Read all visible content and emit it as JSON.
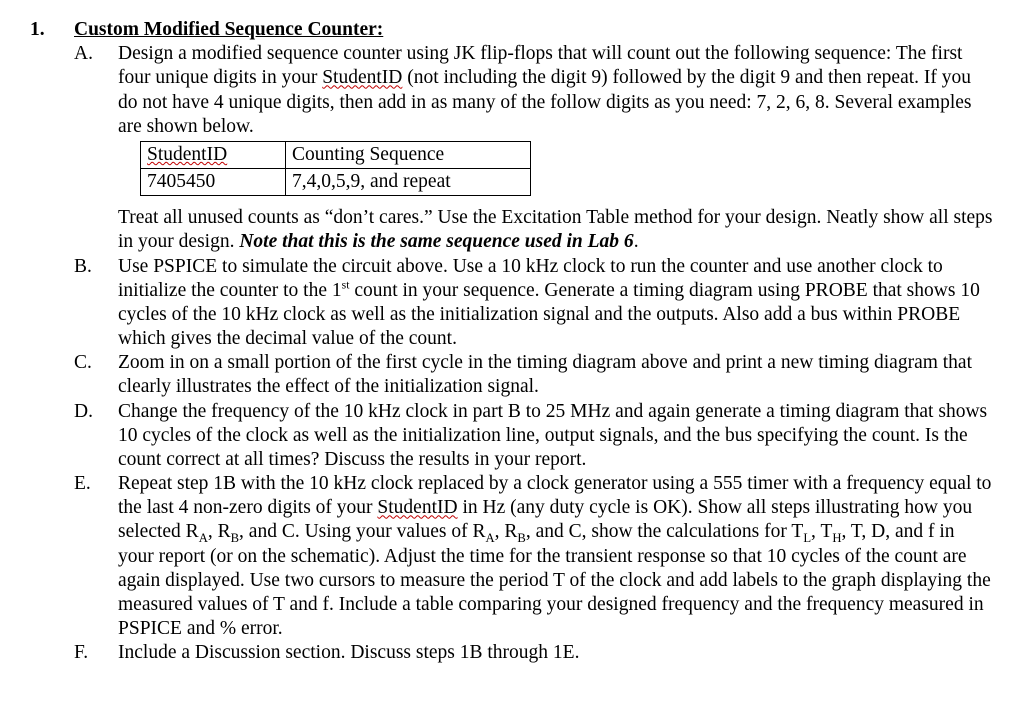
{
  "problem_number": "1.",
  "title": "Custom Modified Sequence Counter:",
  "items": {
    "A": {
      "letter": "A.",
      "p1_pre": "Design a modified sequence counter using JK flip-flops that will count out the following sequence: The first four unique digits in your ",
      "p1_wavy": "StudentID",
      "p1_post": " (not including the digit 9) followed by the digit 9 and then repeat.  If you do not have 4 unique digits, then add in as many of the follow digits as you need:  7, 2, 6, 8.  Several examples are shown below.",
      "table": {
        "h0_wavy": "StudentID",
        "h1": "Counting Sequence",
        "r0": "7405450",
        "r1": "7,4,0,5,9, and repeat"
      },
      "p2_a": "Treat all unused counts as “don’t cares.”  Use the Excitation Table method for your design.  Neatly show all steps in your design.  ",
      "p2_b": "Note that this is the same sequence used in Lab 6",
      "p2_c": "."
    },
    "B": {
      "letter": "B.",
      "t1": "Use PSPICE to simulate the circuit above.  Use a 10 kHz clock to run the counter and use another clock to initialize the counter to the 1",
      "sup": "st",
      "t2": " count in your sequence.  Generate a timing diagram using PROBE that shows 10 cycles of the 10 kHz clock as well as the initialization signal and the outputs.  Also add a bus within PROBE which gives the decimal value of the count."
    },
    "C": {
      "letter": "C.",
      "t": "Zoom in on a small portion of the first cycle in the timing diagram above and print a new timing diagram that clearly illustrates the effect of the initialization signal."
    },
    "D": {
      "letter": "D.",
      "t": "Change the frequency of the 10 kHz clock in part B to 25 MHz and again generate a timing diagram that shows 10 cycles of the clock as well as the initialization line, output signals, and the bus specifying the count.  Is the count correct at all times?  Discuss the results in your report."
    },
    "E": {
      "letter": "E.",
      "t1": "Repeat step 1B with the 10 kHz clock replaced by a clock generator using a 555 timer with a frequency equal to the last 4 non-zero digits of your ",
      "wavy": "StudentID",
      "t2": " in Hz (any duty cycle is OK).  Show all steps illustrating how you selected R",
      "sA1": "A",
      "t3": ", R",
      "sB1": "B",
      "t4": ", and C.  Using your values of R",
      "sA2": "A",
      "t5": ", R",
      "sB2": "B",
      "t6": ", and C, show the calculations for T",
      "sL": "L",
      "t7": ", T",
      "sH": "H",
      "t8": ", T, D, and f in your report (or on the schematic).  Adjust the time for the transient response so that 10 cycles of the count are again displayed.  Use two cursors to measure the period T of the clock and add labels to the graph displaying the measured values of T and f.  Include a table comparing your designed frequency and the frequency measured in PSPICE and % error."
    },
    "F": {
      "letter": "F.",
      "t": "Include a Discussion section.  Discuss steps 1B through 1E."
    }
  }
}
